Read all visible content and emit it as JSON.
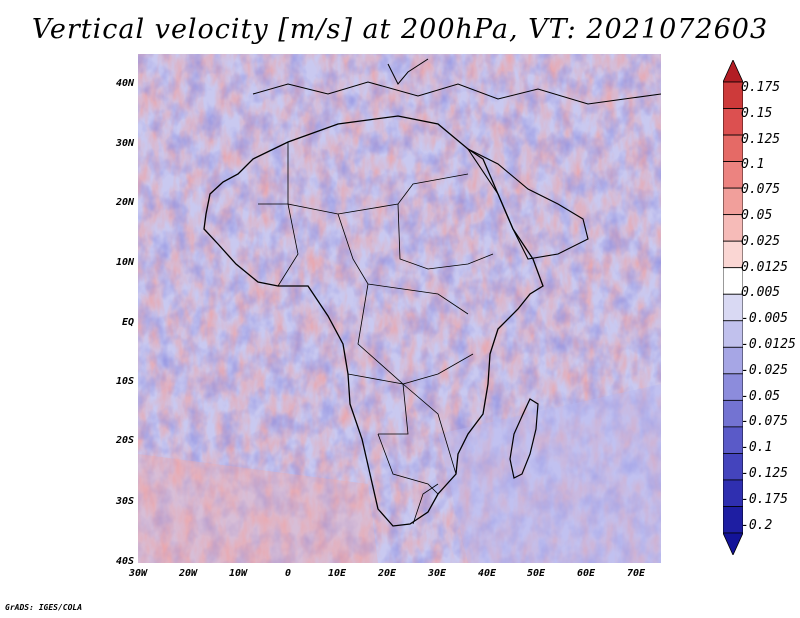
{
  "title": "Vertical velocity [m/s] at 200hPa, VT: 2021072603",
  "map": {
    "lat_labels": [
      "40N",
      "30N",
      "20N",
      "10N",
      "EQ",
      "10S",
      "20S",
      "30S",
      "40S"
    ],
    "lon_labels": [
      "30W",
      "20W",
      "10W",
      "0",
      "10E",
      "20E",
      "30E",
      "40E",
      "50E",
      "60E",
      "70E"
    ]
  },
  "colorbar": {
    "labels": [
      "0.175",
      "0.15",
      "0.125",
      "0.1",
      "0.075",
      "0.05",
      "0.025",
      "0.0125",
      "0.005",
      "-0.005",
      "-0.0125",
      "-0.025",
      "-0.05",
      "-0.075",
      "-0.1",
      "-0.125",
      "-0.175",
      "-0.2"
    ],
    "colors": [
      "#b21d24",
      "#cd3a3a",
      "#dc5050",
      "#e56a66",
      "#ec8380",
      "#f19f9b",
      "#f6bbb8",
      "#fad6d3",
      "#ffffff",
      "#d9d9f3",
      "#c1c1ed",
      "#a6a6e5",
      "#8c8cdc",
      "#7373d2",
      "#5a5ac8",
      "#4444bd",
      "#2f2fb0",
      "#1e1ea2",
      "#131399"
    ]
  },
  "credit": "GrADS: IGES/COLA"
}
